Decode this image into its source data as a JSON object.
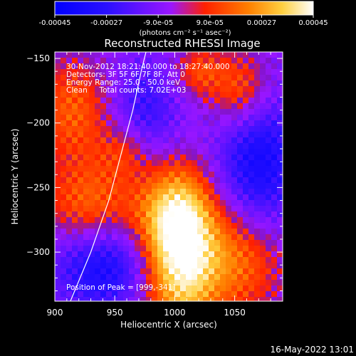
{
  "window": {
    "timestamp": "16-May-2022 13:01"
  },
  "colorbar": {
    "tick_labels": [
      "-0.00045",
      "-0.00027",
      "-9.0e-05",
      "9.0e-05",
      "0.00027",
      "0.00045"
    ],
    "units_text": "(photons cm⁻² s⁻¹ asec⁻²)",
    "range": [
      -0.00045,
      0.00045
    ],
    "colors": {
      "min": "#0000ff",
      "mid": "#9a16ff",
      "high": "#ff2000",
      "max": "#ffffff"
    }
  },
  "chart_data": {
    "type": "heatmap",
    "title": "Reconstructed RHESSI Image",
    "xlabel": "Heliocentric X (arcsec)",
    "ylabel": "Heliocentric Y (arcsec)",
    "xlim": [
      900,
      1090
    ],
    "ylim": [
      -338,
      -145
    ],
    "x_ticks": [
      900,
      950,
      1000,
      1050
    ],
    "y_ticks": [
      -150,
      -200,
      -250,
      -300
    ],
    "x_tick_labels": [
      "900",
      "950",
      "1000",
      "1050"
    ],
    "y_tick_labels": [
      "−150",
      "−200",
      "−250",
      "−300"
    ],
    "annotations": [
      "30-Nov-2012 18:21:40.000 to 18:27:40.000",
      "Detectors: 3F 5F 6F 7F 8F, Att 0",
      "Energy Range: 25.0 - 50.0 keV",
      "Clean     Total counts: 7.02E+03"
    ],
    "peak_text": "Position of Peak = [999,-341]",
    "peak_position": [
      999,
      -341
    ],
    "limb_curve": [
      [
        913,
        -338
      ],
      [
        930,
        -300
      ],
      [
        945,
        -260
      ],
      [
        955,
        -225
      ],
      [
        965,
        -190
      ],
      [
        972,
        -160
      ],
      [
        976,
        -145
      ]
    ],
    "features": [
      {
        "x": 1005,
        "y": -310,
        "value": 0.00045,
        "sx": 22,
        "sy": 40
      },
      {
        "x": 1000,
        "y": -270,
        "value": 0.0003,
        "sx": 22,
        "sy": 28
      },
      {
        "x": 1055,
        "y": -305,
        "value": 0.00025,
        "sx": 25,
        "sy": 30
      },
      {
        "x": 1055,
        "y": -175,
        "value": 0.00025,
        "sx": 18,
        "sy": 22
      },
      {
        "x": 1020,
        "y": -160,
        "value": 0.00018,
        "sx": 14,
        "sy": 14
      },
      {
        "x": 930,
        "y": -265,
        "value": 0.00025,
        "sx": 28,
        "sy": 25
      },
      {
        "x": 915,
        "y": -190,
        "value": 0.00022,
        "sx": 22,
        "sy": 28
      },
      {
        "x": 960,
        "y": -220,
        "value": 0.00018,
        "sx": 16,
        "sy": 16
      },
      {
        "x": 1070,
        "y": -230,
        "value": -0.0003,
        "sx": 25,
        "sy": 40
      },
      {
        "x": 940,
        "y": -310,
        "value": -0.0003,
        "sx": 30,
        "sy": 25
      },
      {
        "x": 975,
        "y": -195,
        "value": -0.0002,
        "sx": 20,
        "sy": 30
      }
    ]
  }
}
